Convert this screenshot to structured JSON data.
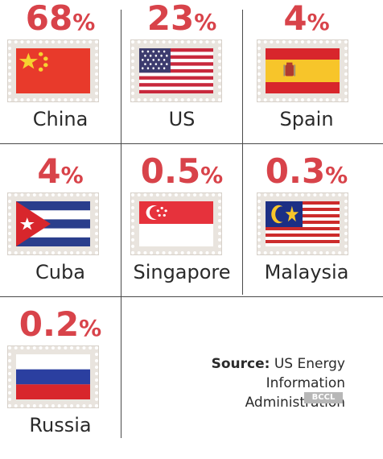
{
  "items": [
    {
      "value": "68",
      "unit": "%",
      "country": "China",
      "flag": "china-flag"
    },
    {
      "value": "23",
      "unit": "%",
      "country": "US",
      "flag": "us-flag"
    },
    {
      "value": "4",
      "unit": "%",
      "country": "Spain",
      "flag": "spain-flag"
    },
    {
      "value": "4",
      "unit": "%",
      "country": "Cuba",
      "flag": "cuba-flag"
    },
    {
      "value": "0.5",
      "unit": "%",
      "country": "Singapore",
      "flag": "singapore-flag"
    },
    {
      "value": "0.3",
      "unit": "%",
      "country": "Malaysia",
      "flag": "malaysia-flag"
    },
    {
      "value": "0.2",
      "unit": "%",
      "country": "Russia",
      "flag": "russia-flag"
    }
  ],
  "source": {
    "label": "Source:",
    "text_line1": " US Energy Information",
    "text_line2": "Administration"
  },
  "logo": "BCCL",
  "colors": {
    "accent": "#d8434a",
    "grid": "#4a4a4a",
    "stamp": "#e9e4de"
  }
}
